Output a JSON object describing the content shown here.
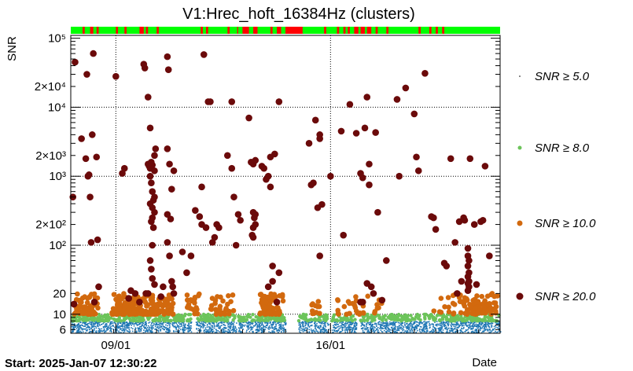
{
  "chart_data": {
    "type": "scatter",
    "title": "V1:Hrec_hoft_16384Hz (clusters)",
    "xlabel": "Date",
    "ylabel": "SNR",
    "start_label": "Start: 2025-Jan-07 12:30:22",
    "x_unit": "days",
    "x_range": [
      0,
      20
    ],
    "ylim": [
      5.3,
      110000
    ],
    "yscale": "log",
    "grid": true,
    "legend_position": "right",
    "x_ticks": [
      {
        "value": 2.1,
        "label": "09/01"
      },
      {
        "value": 12.1,
        "label": "16/01"
      }
    ],
    "y_ticks": [
      {
        "value": 6,
        "label": "6"
      },
      {
        "value": 10,
        "label": "10"
      },
      {
        "value": 20,
        "label": "20"
      },
      {
        "value": 100,
        "label": "10²"
      },
      {
        "value": 200,
        "label": "2×10²"
      },
      {
        "value": 1000,
        "label": "10³"
      },
      {
        "value": 2000,
        "label": "2×10³"
      },
      {
        "value": 10000,
        "label": "10⁴"
      },
      {
        "value": 20000,
        "label": "2×10⁴"
      },
      {
        "value": 100000,
        "label": "10⁵"
      }
    ],
    "series": [
      {
        "name": "SNR ≥ 5.0",
        "color": "#1f77b4",
        "legend_color": "#000000",
        "marker": "tiny",
        "density_range": [
          5.5,
          8
        ]
      },
      {
        "name": "SNR ≥ 8.0",
        "color": "#6cc45a",
        "marker": "small",
        "density_range": [
          8,
          10
        ]
      },
      {
        "name": "SNR ≥ 10.0",
        "color": "#d2690e",
        "marker": "medium",
        "density_range": [
          10,
          20
        ]
      },
      {
        "name": "SNR ≥ 20.0",
        "color": "#6b0a0a",
        "marker": "large",
        "points": [
          [
            0.1,
            500
          ],
          [
            0.15,
            14
          ],
          [
            0.2,
            45000
          ],
          [
            0.5,
            3500
          ],
          [
            0.7,
            1800
          ],
          [
            0.75,
            30000
          ],
          [
            0.8,
            1000
          ],
          [
            0.85,
            1050
          ],
          [
            0.9,
            500
          ],
          [
            0.95,
            110
          ],
          [
            1.0,
            4000
          ],
          [
            1.05,
            60000
          ],
          [
            1.1,
            15
          ],
          [
            1.2,
            1900
          ],
          [
            1.25,
            120
          ],
          [
            1.3,
            25
          ],
          [
            2.1,
            28000
          ],
          [
            2.4,
            1100
          ],
          [
            2.5,
            1300
          ],
          [
            2.7,
            17
          ],
          [
            2.8,
            22
          ],
          [
            3.0,
            20
          ],
          [
            3.2,
            15
          ],
          [
            3.5,
            20
          ],
          [
            3.4,
            42000
          ],
          [
            3.45,
            37000
          ],
          [
            3.6,
            14000
          ],
          [
            3.7,
            5000
          ],
          [
            3.6,
            1500
          ],
          [
            3.65,
            1400
          ],
          [
            3.7,
            1300
          ],
          [
            3.75,
            1600
          ],
          [
            3.8,
            1450
          ],
          [
            3.9,
            1200
          ],
          [
            3.7,
            1000
          ],
          [
            3.75,
            800
          ],
          [
            3.8,
            600
          ],
          [
            3.9,
            500
          ],
          [
            3.85,
            450
          ],
          [
            3.7,
            400
          ],
          [
            3.8,
            350
          ],
          [
            3.9,
            300
          ],
          [
            3.8,
            250
          ],
          [
            3.75,
            220
          ],
          [
            3.85,
            180
          ],
          [
            3.8,
            100
          ],
          [
            3.7,
            60
          ],
          [
            3.75,
            45
          ],
          [
            3.8,
            33
          ],
          [
            3.9,
            27
          ],
          [
            3.6,
            20
          ],
          [
            3.95,
            2500
          ],
          [
            3.9,
            2000
          ],
          [
            4.2,
            18
          ],
          [
            4.3,
            25
          ],
          [
            4.5,
            54000
          ],
          [
            4.55,
            35000
          ],
          [
            4.5,
            2500
          ],
          [
            4.6,
            1500
          ],
          [
            4.7,
            650
          ],
          [
            4.5,
            280
          ],
          [
            4.65,
            240
          ],
          [
            4.5,
            110
          ],
          [
            4.6,
            70
          ],
          [
            4.8,
            1200
          ],
          [
            4.7,
            30
          ],
          [
            4.75,
            25
          ],
          [
            4.8,
            20
          ],
          [
            5.2,
            80
          ],
          [
            5.4,
            40
          ],
          [
            5.6,
            70
          ],
          [
            6.2,
            58000
          ],
          [
            6.1,
            700
          ],
          [
            5.8,
            320
          ],
          [
            6.0,
            260
          ],
          [
            6.1,
            200
          ],
          [
            6.3,
            180
          ],
          [
            6.4,
            12000
          ],
          [
            6.5,
            12000
          ],
          [
            6.6,
            110
          ],
          [
            6.7,
            130
          ],
          [
            6.8,
            200
          ],
          [
            6.9,
            180
          ],
          [
            7.5,
            12000
          ],
          [
            7.3,
            2000
          ],
          [
            7.5,
            1300
          ],
          [
            7.6,
            500
          ],
          [
            7.8,
            280
          ],
          [
            7.9,
            230
          ],
          [
            7.7,
            100
          ],
          [
            8.3,
            7000
          ],
          [
            8.4,
            1600
          ],
          [
            8.5,
            1500
          ],
          [
            8.6,
            1700
          ],
          [
            8.5,
            300
          ],
          [
            8.6,
            280
          ],
          [
            8.55,
            250
          ],
          [
            8.6,
            200
          ],
          [
            8.5,
            180
          ],
          [
            8.45,
            140
          ],
          [
            8.5,
            130
          ],
          [
            8.9,
            1400
          ],
          [
            9.0,
            1300
          ],
          [
            9.1,
            900
          ],
          [
            9.2,
            1000
          ],
          [
            9.3,
            700
          ],
          [
            9.3,
            1900
          ],
          [
            9.5,
            2100
          ],
          [
            9.4,
            50
          ],
          [
            9.2,
            25
          ],
          [
            9.4,
            30
          ],
          [
            9.6,
            15
          ],
          [
            9.7,
            40
          ],
          [
            9.7,
            12000
          ],
          [
            11.2,
            750
          ],
          [
            11.3,
            800
          ],
          [
            11.1,
            3000
          ],
          [
            11.4,
            6500
          ],
          [
            11.6,
            4000
          ],
          [
            11.6,
            3500
          ],
          [
            11.5,
            350
          ],
          [
            11.7,
            390
          ],
          [
            11.6,
            70
          ],
          [
            12.1,
            1000
          ],
          [
            12.6,
            4500
          ],
          [
            12.7,
            140
          ],
          [
            13.0,
            11000
          ],
          [
            13.3,
            4200
          ],
          [
            13.5,
            1100
          ],
          [
            13.6,
            950
          ],
          [
            13.5,
            15
          ],
          [
            13.6,
            15
          ],
          [
            13.8,
            14000
          ],
          [
            13.7,
            5000
          ],
          [
            13.9,
            1500
          ],
          [
            13.9,
            750
          ],
          [
            13.8,
            28
          ],
          [
            14.0,
            25
          ],
          [
            14.1,
            20
          ],
          [
            14.2,
            4300
          ],
          [
            14.3,
            300
          ],
          [
            14.5,
            16
          ],
          [
            14.7,
            60
          ],
          [
            15.2,
            13000
          ],
          [
            15.6,
            19000
          ],
          [
            15.3,
            1000
          ],
          [
            16.0,
            8000
          ],
          [
            16.1,
            1900
          ],
          [
            16.2,
            1200
          ],
          [
            16.5,
            31000
          ],
          [
            16.8,
            260
          ],
          [
            16.9,
            250
          ],
          [
            17.0,
            170
          ],
          [
            17.4,
            55
          ],
          [
            17.5,
            50
          ],
          [
            17.7,
            1800
          ],
          [
            17.9,
            110
          ],
          [
            18.0,
            20
          ],
          [
            18.2,
            30
          ],
          [
            18.1,
            220
          ],
          [
            18.3,
            250
          ],
          [
            18.35,
            230
          ],
          [
            18.6,
            1800
          ],
          [
            18.8,
            200
          ],
          [
            19.3,
            1400
          ],
          [
            18.5,
            90
          ],
          [
            18.5,
            70
          ],
          [
            18.55,
            60
          ],
          [
            18.5,
            50
          ],
          [
            18.55,
            40
          ],
          [
            18.5,
            35
          ],
          [
            18.55,
            30
          ],
          [
            18.5,
            28
          ],
          [
            18.55,
            25
          ],
          [
            18.5,
            22
          ],
          [
            18.9,
            27
          ],
          [
            19.1,
            220
          ],
          [
            19.2,
            230
          ],
          [
            19.5,
            70
          ]
        ]
      }
    ],
    "status_bar": {
      "good_color": "#00ff00",
      "bad_color": "#ff0000",
      "bad_intervals": [
        [
          0.55,
          0.65
        ],
        [
          0.9,
          1.05
        ],
        [
          1.2,
          1.3
        ],
        [
          2.1,
          2.2
        ],
        [
          2.5,
          2.6
        ],
        [
          3.2,
          3.4
        ],
        [
          3.5,
          3.6
        ],
        [
          4.0,
          4.1
        ],
        [
          6.05,
          6.15
        ],
        [
          6.3,
          6.4
        ],
        [
          7.3,
          7.4
        ],
        [
          7.75,
          7.8
        ],
        [
          8.0,
          8.3
        ],
        [
          8.5,
          8.7
        ],
        [
          9.3,
          9.4
        ],
        [
          9.6,
          9.8
        ],
        [
          10.0,
          10.8
        ],
        [
          11.8,
          11.9
        ],
        [
          12.4,
          12.5
        ],
        [
          12.7,
          12.8
        ],
        [
          12.9,
          13.0
        ],
        [
          13.2,
          13.4
        ],
        [
          13.5,
          13.7
        ],
        [
          13.8,
          14.0
        ],
        [
          14.2,
          14.3
        ],
        [
          14.7,
          14.8
        ],
        [
          16.2,
          16.3
        ],
        [
          16.7,
          16.8
        ],
        [
          17.0,
          17.1
        ],
        [
          17.3,
          17.4
        ]
      ]
    }
  }
}
